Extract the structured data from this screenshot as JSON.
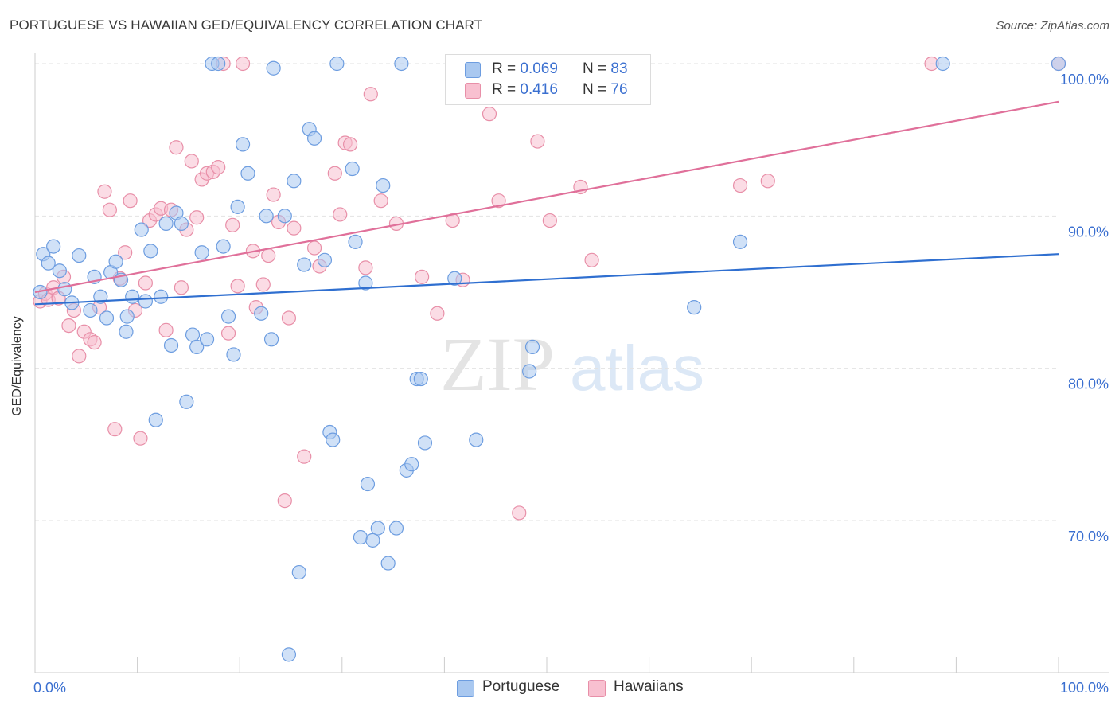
{
  "title": "PORTUGUESE VS HAWAIIAN GED/EQUIVALENCY CORRELATION CHART",
  "source": "Source: ZipAtlas.com",
  "watermark": {
    "zip": "ZIP",
    "atlas": "atlas"
  },
  "colors": {
    "portuguese_fill": "#a9c8f0",
    "portuguese_stroke": "#6d9de0",
    "portuguese_line": "#2f6fd0",
    "hawaiians_fill": "#f8c0d0",
    "hawaiians_stroke": "#e88fa8",
    "hawaiians_line": "#e0709a",
    "tick_label": "#3a6fd0",
    "grid": "#e2e2e2"
  },
  "legend_top": [
    {
      "series": "Portuguese",
      "r_label": "R =",
      "r_value": "0.069",
      "n_label": "N =",
      "n_value": "83"
    },
    {
      "series": "Hawaiians",
      "r_label": "R =",
      "r_value": "0.416",
      "n_label": "N =",
      "n_value": "76"
    }
  ],
  "chart_data": {
    "type": "scatter",
    "title": "PORTUGUESE VS HAWAIIAN GED/EQUIVALENCY CORRELATION CHART",
    "xlabel": "",
    "ylabel": "GED/Equivalency",
    "xlim": [
      0,
      100
    ],
    "ylim": [
      60.5,
      101.5
    ],
    "x_tick_labels": [
      "0.0%",
      "100.0%"
    ],
    "y_ticks": [
      70,
      80,
      90,
      100
    ],
    "y_tick_labels": [
      "70.0%",
      "80.0%",
      "90.0%",
      "100.0%"
    ],
    "grid": true,
    "legend_position": "bottom",
    "series": [
      {
        "name": "Portuguese",
        "color": "#a9c8f0",
        "trend": {
          "x": [
            0,
            100
          ],
          "y": [
            84.2,
            87.5
          ]
        },
        "points": [
          [
            0.5,
            85.0
          ],
          [
            0.8,
            87.5
          ],
          [
            1.3,
            86.9
          ],
          [
            1.8,
            88.0
          ],
          [
            2.4,
            86.4
          ],
          [
            2.9,
            85.2
          ],
          [
            3.6,
            84.3
          ],
          [
            4.3,
            87.4
          ],
          [
            5.4,
            83.8
          ],
          [
            5.8,
            86.0
          ],
          [
            6.4,
            84.7
          ],
          [
            7.0,
            83.3
          ],
          [
            7.4,
            86.3
          ],
          [
            7.9,
            87.0
          ],
          [
            8.4,
            85.8
          ],
          [
            8.9,
            82.4
          ],
          [
            9.0,
            83.4
          ],
          [
            9.5,
            84.7
          ],
          [
            10.4,
            89.1
          ],
          [
            10.8,
            84.4
          ],
          [
            11.3,
            87.7
          ],
          [
            11.8,
            76.6
          ],
          [
            12.3,
            84.7
          ],
          [
            12.8,
            89.5
          ],
          [
            13.3,
            81.5
          ],
          [
            13.8,
            90.2
          ],
          [
            14.3,
            89.5
          ],
          [
            14.8,
            77.8
          ],
          [
            15.4,
            82.2
          ],
          [
            15.8,
            81.4
          ],
          [
            16.3,
            87.6
          ],
          [
            16.8,
            81.9
          ],
          [
            17.3,
            100.0
          ],
          [
            17.9,
            100.0
          ],
          [
            18.4,
            88.0
          ],
          [
            18.9,
            83.4
          ],
          [
            19.4,
            80.9
          ],
          [
            19.8,
            90.6
          ],
          [
            20.3,
            94.7
          ],
          [
            20.8,
            92.8
          ],
          [
            22.1,
            83.6
          ],
          [
            22.6,
            90.0
          ],
          [
            23.1,
            81.9
          ],
          [
            23.3,
            99.7
          ],
          [
            24.4,
            90.0
          ],
          [
            24.8,
            61.2
          ],
          [
            25.3,
            92.3
          ],
          [
            25.8,
            66.6
          ],
          [
            26.3,
            86.8
          ],
          [
            26.8,
            95.7
          ],
          [
            27.3,
            95.1
          ],
          [
            28.3,
            87.1
          ],
          [
            28.8,
            75.8
          ],
          [
            29.1,
            75.3
          ],
          [
            29.5,
            100.0
          ],
          [
            31.0,
            93.1
          ],
          [
            31.3,
            88.3
          ],
          [
            31.8,
            68.9
          ],
          [
            32.3,
            85.6
          ],
          [
            32.5,
            72.4
          ],
          [
            33.0,
            68.7
          ],
          [
            33.5,
            69.5
          ],
          [
            34.0,
            92.0
          ],
          [
            34.5,
            67.2
          ],
          [
            35.3,
            69.5
          ],
          [
            35.8,
            100.0
          ],
          [
            36.3,
            73.3
          ],
          [
            36.8,
            73.7
          ],
          [
            37.3,
            79.3
          ],
          [
            37.7,
            79.3
          ],
          [
            38.1,
            75.1
          ],
          [
            41.0,
            85.9
          ],
          [
            43.1,
            75.3
          ],
          [
            45.2,
            100.0
          ],
          [
            48.3,
            79.8
          ],
          [
            48.6,
            81.4
          ],
          [
            64.4,
            84.0
          ],
          [
            68.9,
            88.3
          ],
          [
            88.7,
            100.0
          ],
          [
            100.0,
            100.0
          ]
        ]
      },
      {
        "name": "Hawaiians",
        "color": "#f8c0d0",
        "trend": {
          "x": [
            0,
            100
          ],
          "y": [
            85.0,
            97.5
          ]
        },
        "points": [
          [
            0.5,
            84.4
          ],
          [
            1.0,
            84.9
          ],
          [
            1.3,
            84.5
          ],
          [
            1.8,
            85.3
          ],
          [
            2.3,
            84.6
          ],
          [
            2.8,
            86.0
          ],
          [
            3.3,
            82.8
          ],
          [
            3.8,
            83.8
          ],
          [
            4.3,
            80.8
          ],
          [
            4.8,
            82.4
          ],
          [
            5.4,
            81.9
          ],
          [
            5.8,
            81.7
          ],
          [
            6.3,
            84.0
          ],
          [
            6.8,
            91.6
          ],
          [
            7.3,
            90.4
          ],
          [
            7.8,
            76.0
          ],
          [
            8.3,
            85.9
          ],
          [
            8.8,
            87.6
          ],
          [
            9.3,
            91.0
          ],
          [
            9.8,
            83.8
          ],
          [
            10.3,
            75.4
          ],
          [
            10.8,
            85.6
          ],
          [
            11.2,
            89.7
          ],
          [
            11.8,
            90.1
          ],
          [
            12.3,
            90.5
          ],
          [
            12.8,
            82.5
          ],
          [
            13.3,
            90.4
          ],
          [
            13.8,
            94.5
          ],
          [
            14.3,
            85.3
          ],
          [
            14.8,
            89.1
          ],
          [
            15.3,
            93.6
          ],
          [
            15.8,
            89.9
          ],
          [
            16.3,
            92.4
          ],
          [
            16.8,
            92.8
          ],
          [
            17.4,
            92.9
          ],
          [
            17.9,
            93.2
          ],
          [
            18.4,
            100.0
          ],
          [
            18.9,
            82.3
          ],
          [
            19.3,
            89.4
          ],
          [
            19.8,
            85.4
          ],
          [
            20.3,
            100.0
          ],
          [
            21.3,
            87.7
          ],
          [
            21.6,
            84.0
          ],
          [
            22.3,
            85.5
          ],
          [
            22.8,
            87.4
          ],
          [
            23.3,
            91.4
          ],
          [
            23.8,
            89.6
          ],
          [
            24.4,
            71.3
          ],
          [
            24.8,
            83.3
          ],
          [
            25.3,
            89.2
          ],
          [
            26.3,
            74.2
          ],
          [
            27.3,
            87.9
          ],
          [
            27.8,
            86.7
          ],
          [
            29.3,
            92.8
          ],
          [
            29.8,
            90.1
          ],
          [
            30.3,
            94.8
          ],
          [
            30.8,
            94.7
          ],
          [
            32.3,
            86.6
          ],
          [
            32.8,
            98.0
          ],
          [
            33.8,
            91.0
          ],
          [
            35.3,
            89.5
          ],
          [
            37.8,
            86.0
          ],
          [
            39.3,
            83.6
          ],
          [
            40.8,
            89.7
          ],
          [
            41.8,
            85.8
          ],
          [
            44.4,
            96.7
          ],
          [
            45.3,
            91.0
          ],
          [
            47.3,
            70.5
          ],
          [
            49.1,
            94.9
          ],
          [
            50.3,
            89.7
          ],
          [
            53.3,
            91.9
          ],
          [
            54.4,
            87.1
          ],
          [
            68.9,
            92.0
          ],
          [
            71.6,
            92.3
          ],
          [
            87.6,
            100.0
          ],
          [
            100.0,
            100.0
          ]
        ]
      }
    ]
  }
}
